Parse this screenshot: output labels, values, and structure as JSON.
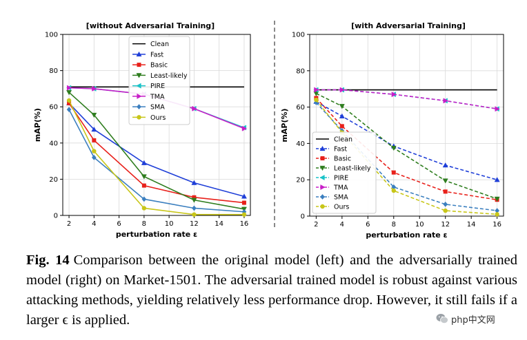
{
  "chart_data": [
    {
      "type": "line",
      "title": "[without Adversarial Training]",
      "xlabel": "perturbation rate ε",
      "ylabel": "mAP(%)",
      "xlim": [
        1.5,
        16.5
      ],
      "ylim": [
        0,
        100
      ],
      "xticks": [
        2,
        4,
        6,
        8,
        10,
        12,
        14,
        16
      ],
      "yticks": [
        0,
        20,
        40,
        60,
        80,
        100
      ],
      "grid": true,
      "legend_position": "top-center",
      "line_style": "solid",
      "x": [
        2,
        4,
        8,
        12,
        16
      ],
      "series": [
        {
          "name": "Clean",
          "color": "#000000",
          "marker": "none",
          "values": [
            71,
            71,
            71,
            71,
            71
          ]
        },
        {
          "name": "Fast",
          "color": "#1f3fd8",
          "marker": "triangle-up",
          "values": [
            62,
            47.5,
            29,
            18,
            10.5
          ]
        },
        {
          "name": "Basic",
          "color": "#e8201a",
          "marker": "square",
          "values": [
            62,
            41.5,
            16.5,
            10,
            7
          ]
        },
        {
          "name": "Least-likely",
          "color": "#2e7d1e",
          "marker": "triangle-down",
          "values": [
            68,
            55.5,
            21.5,
            8.5,
            3.5
          ]
        },
        {
          "name": "PIRE",
          "color": "#19c3c8",
          "marker": "triangle-left",
          "values": [
            70.5,
            70,
            67,
            59,
            48.5
          ]
        },
        {
          "name": "TMA",
          "color": "#c81fc8",
          "marker": "triangle-right",
          "values": [
            70.5,
            70,
            67,
            59,
            48
          ]
        },
        {
          "name": "SMA",
          "color": "#3b7fbf",
          "marker": "diamond",
          "values": [
            58.5,
            32,
            9,
            4,
            2
          ]
        },
        {
          "name": "Ours",
          "color": "#c8c619",
          "marker": "circle",
          "values": [
            63.5,
            35.5,
            4,
            0.5,
            0.5
          ]
        }
      ]
    },
    {
      "type": "line",
      "title": "[with Adversarial Training]",
      "xlabel": "perturbation rate ε",
      "ylabel": "mAP(%)",
      "xlim": [
        1.5,
        16.5
      ],
      "ylim": [
        0,
        100
      ],
      "xticks": [
        2,
        4,
        6,
        8,
        10,
        12,
        14,
        16
      ],
      "yticks": [
        0,
        20,
        40,
        60,
        80,
        100
      ],
      "grid": true,
      "legend_position": "bottom-left",
      "line_style": "dashed",
      "x": [
        2,
        4,
        8,
        12,
        16
      ],
      "series": [
        {
          "name": "Clean",
          "color": "#000000",
          "marker": "none",
          "values": [
            69.5,
            69.5,
            69.5,
            69.5,
            69.5
          ]
        },
        {
          "name": "Fast",
          "color": "#1f3fd8",
          "marker": "triangle-up",
          "values": [
            63,
            55,
            38.5,
            28,
            20
          ]
        },
        {
          "name": "Basic",
          "color": "#e8201a",
          "marker": "square",
          "values": [
            65,
            49.5,
            24,
            13.5,
            9
          ]
        },
        {
          "name": "Least-likely",
          "color": "#2e7d1e",
          "marker": "triangle-down",
          "values": [
            67.5,
            60.5,
            37.5,
            19.5,
            9.5
          ]
        },
        {
          "name": "PIRE",
          "color": "#19c3c8",
          "marker": "triangle-left",
          "values": [
            69.5,
            69.5,
            67,
            63.5,
            59
          ]
        },
        {
          "name": "TMA",
          "color": "#c81fc8",
          "marker": "triangle-right",
          "values": [
            69.5,
            69.5,
            67,
            63.5,
            59
          ]
        },
        {
          "name": "SMA",
          "color": "#3b7fbf",
          "marker": "diamond",
          "values": [
            62.5,
            47,
            16,
            6.5,
            3
          ]
        },
        {
          "name": "Ours",
          "color": "#c8c619",
          "marker": "circle",
          "values": [
            64,
            46,
            14,
            3,
            1
          ]
        }
      ]
    }
  ],
  "caption": {
    "label": "Fig. 14",
    "text": "Comparison between the original model (left) and the adversarially trained model (right) on Market-1501. The adversarial trained model is robust against various attacking methods, yielding relatively less performance drop. However, it still fails if a larger ϵ is applied."
  },
  "watermark": {
    "text": "php中文网",
    "icon": "wechat-icon"
  }
}
